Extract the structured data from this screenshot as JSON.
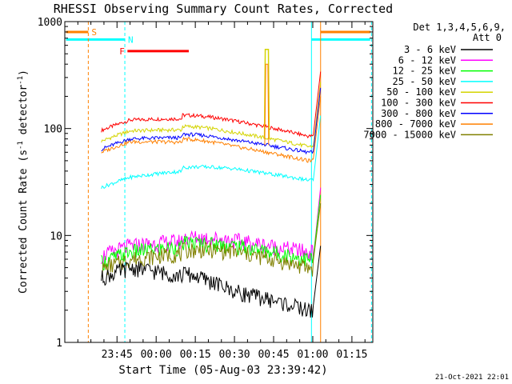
{
  "chart_data": {
    "type": "line",
    "title": "RHESSI Observing Summary Count Rates, Corrected",
    "xlabel": "Start Time (05-Aug-03 23:39:42)",
    "ylabel": "Corrected Count Rate (s⁻¹ detector⁻¹)",
    "ylabel_main": "Corrected Count Rate (s",
    "ylabel_exp1": "-1",
    "ylabel_mid": " detector",
    "ylabel_exp2": "-1",
    "ylabel_end": ")",
    "y_scale": "log",
    "ylim": [
      1,
      1000
    ],
    "xlim_minutes": [
      -20,
      98
    ],
    "x_ticks": [
      {
        "minute": 0,
        "label": "23:45"
      },
      {
        "minute": 15,
        "label": "00:00"
      },
      {
        "minute": 30,
        "label": "00:15"
      },
      {
        "minute": 45,
        "label": "00:30"
      },
      {
        "minute": 60,
        "label": "00:45"
      },
      {
        "minute": 75,
        "label": "01:00"
      },
      {
        "minute": 90,
        "label": "01:15"
      }
    ],
    "y_ticks": [
      {
        "value": 1,
        "label": "1"
      },
      {
        "value": 10,
        "label": "10"
      },
      {
        "value": 100,
        "label": "100"
      },
      {
        "value": 1000,
        "label": "1000"
      }
    ],
    "legend_header": [
      "Det 1,3,4,5,6,9,",
      "Att 0"
    ],
    "series": [
      {
        "name": "3 - 6 keV",
        "color": "#000000"
      },
      {
        "name": "6 - 12 keV",
        "color": "#ff00ff"
      },
      {
        "name": "12 - 25 keV",
        "color": "#00ff00"
      },
      {
        "name": "25 - 50 keV",
        "color": "#00ffff"
      },
      {
        "name": "50 - 100 keV",
        "color": "#d4d400"
      },
      {
        "name": "100 - 300 keV",
        "color": "#ff0000"
      },
      {
        "name": "300 - 800 keV",
        "color": "#0000ff"
      },
      {
        "name": "800 - 7000 keV",
        "color": "#ff8000"
      },
      {
        "name": "7000 - 15000 keV",
        "color": "#808000"
      }
    ],
    "bands": [
      {
        "label": "S",
        "color": "#ff8000",
        "value": 800,
        "segments": [
          [
            -19.5,
            -11
          ],
          [
            78,
            97
          ]
        ]
      },
      {
        "label": "N",
        "color": "#00ffff",
        "value": 680,
        "segments": [
          [
            -19.5,
            3
          ],
          [
            74.5,
            97
          ]
        ]
      },
      {
        "label": "F",
        "color": "#ff0000",
        "value": 530,
        "segments": [
          [
            4,
            27.5
          ]
        ]
      }
    ],
    "band_lines": [
      {
        "color": "#ff8000",
        "style": "dashed",
        "minute": -11
      },
      {
        "color": "#00ffff",
        "style": "dashed",
        "minute": 3
      },
      {
        "color": "#00ffff",
        "style": "solid",
        "minute": 74.5
      },
      {
        "color": "#ff8000",
        "style": "solid",
        "minute": 78
      },
      {
        "color": "#00ffff",
        "style": "dashed",
        "minute": 97.5
      },
      {
        "color": "#ff8000",
        "style": "dashed",
        "minute": 98
      }
    ],
    "approx_levels": [
      {
        "series": "100 - 300 keV",
        "at_minute_5": 120,
        "at_minute_45": 118,
        "at_minute_73": 85
      },
      {
        "series": "50 - 100 keV",
        "at_minute_5": 95,
        "at_minute_45": 92,
        "at_minute_73": 68
      },
      {
        "series": "300 - 800 keV",
        "at_minute_5": 80,
        "at_minute_45": 78,
        "at_minute_73": 60
      },
      {
        "series": "800 - 7000 keV",
        "at_minute_5": 75,
        "at_minute_45": 68,
        "at_minute_73": 50
      },
      {
        "series": "25 - 50 keV",
        "at_minute_5": 35,
        "at_minute_45": 42,
        "at_minute_73": 33
      },
      {
        "series": "6 - 12 keV",
        "at_minute_5": 8,
        "at_minute_45": 9,
        "at_minute_73": 7
      },
      {
        "series": "12 - 25 keV",
        "at_minute_5": 7,
        "at_minute_45": 8,
        "at_minute_73": 6
      },
      {
        "series": "7000 - 15000 keV",
        "at_minute_5": 6,
        "at_minute_45": 7,
        "at_minute_73": 5
      },
      {
        "series": "3 - 6 keV",
        "at_minute_5": 5,
        "at_minute_45": 3,
        "at_minute_73": 2
      }
    ]
  },
  "footer": {
    "date": "21-Oct-2021 22:01"
  }
}
